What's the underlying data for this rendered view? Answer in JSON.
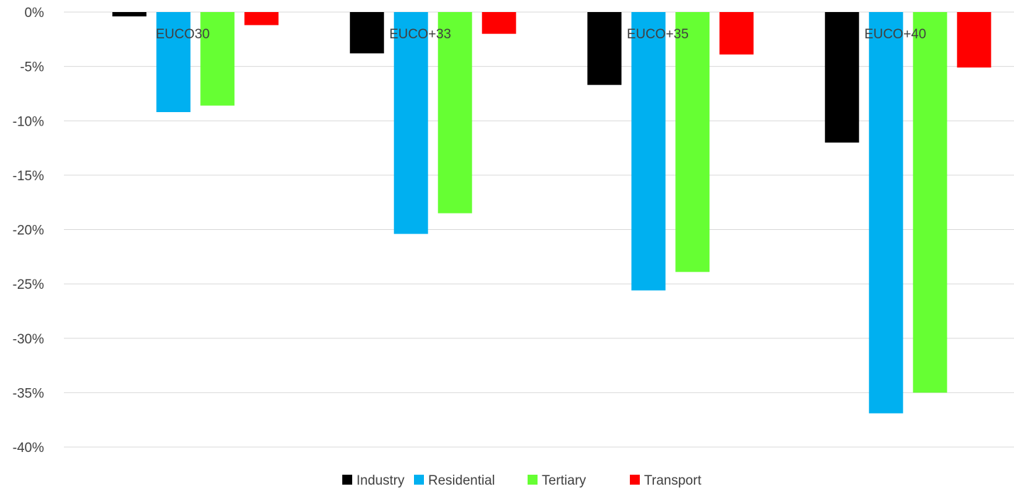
{
  "chart_data": {
    "type": "bar",
    "title": "",
    "xlabel": "",
    "ylabel": "",
    "categories": [
      "EUCO30",
      "EUCO+33",
      "EUCO+35",
      "EUCO+40"
    ],
    "series": [
      {
        "name": "Industry",
        "color": "#000000",
        "values": [
          -0.4,
          -3.8,
          -6.7,
          -12.0
        ]
      },
      {
        "name": "Residential",
        "color": "#00b0f0",
        "values": [
          -9.2,
          -20.4,
          -25.6,
          -36.9
        ]
      },
      {
        "name": "Tertiary",
        "color": "#66ff33",
        "values": [
          -8.6,
          -18.5,
          -23.9,
          -35.0
        ]
      },
      {
        "name": "Transport",
        "color": "#ff0000",
        "values": [
          -1.2,
          -2.0,
          -3.9,
          -5.1
        ]
      }
    ],
    "y_ticks": [
      0,
      -5,
      -10,
      -15,
      -20,
      -25,
      -30,
      -35,
      -40
    ],
    "y_tick_labels": [
      "0%",
      "-5%",
      "-10%",
      "-15%",
      "-20%",
      "-25%",
      "-30%",
      "-35%",
      "-40%"
    ],
    "ylim": [
      -40,
      0
    ],
    "category_labels_position": "top-inside",
    "grid": true,
    "legend": "bottom-center",
    "gridline_color": "#d9d9d9",
    "text_color": "#404040"
  }
}
